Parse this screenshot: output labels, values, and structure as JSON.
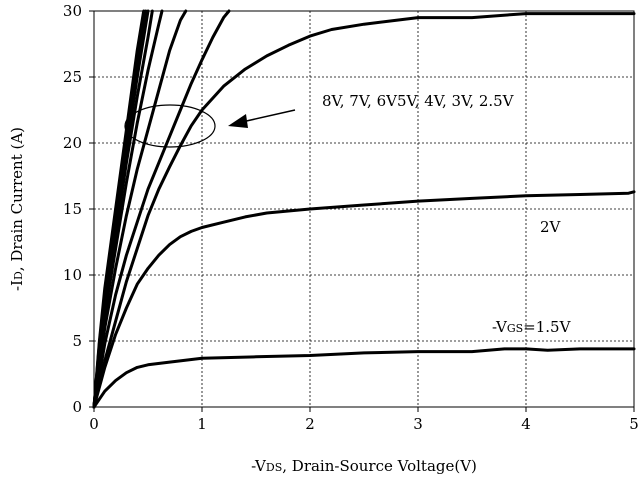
{
  "chart_data": {
    "type": "line",
    "xlabel_prefix": "-V",
    "xlabel_sub": "DS",
    "xlabel_suffix": ", Drain-Source Voltage(V)",
    "ylabel_prefix": "-I",
    "ylabel_sub": "D",
    "ylabel_suffix": ", Drain Current (A)",
    "xlim": [
      0,
      5
    ],
    "ylim": [
      0,
      30
    ],
    "x_ticks": [
      0,
      1,
      2,
      3,
      4,
      5
    ],
    "y_ticks": [
      0,
      5,
      10,
      15,
      20,
      25,
      30
    ],
    "grid": true,
    "series": [
      {
        "points": [
          [
            0,
            0
          ],
          [
            0.05,
            5
          ],
          [
            0.1,
            9
          ],
          [
            0.2,
            15
          ],
          [
            0.3,
            21
          ],
          [
            0.4,
            27
          ],
          [
            0.46,
            30
          ]
        ]
      },
      {
        "points": [
          [
            0,
            0
          ],
          [
            0.05,
            4.8
          ],
          [
            0.1,
            8.5
          ],
          [
            0.2,
            14.5
          ],
          [
            0.3,
            20.5
          ],
          [
            0.4,
            26
          ],
          [
            0.48,
            30
          ]
        ]
      },
      {
        "points": [
          [
            0,
            0
          ],
          [
            0.05,
            4.5
          ],
          [
            0.1,
            8
          ],
          [
            0.2,
            14
          ],
          [
            0.3,
            19.5
          ],
          [
            0.4,
            25
          ],
          [
            0.5,
            30
          ]
        ]
      },
      {
        "points": [
          [
            0,
            0
          ],
          [
            0.05,
            4.3
          ],
          [
            0.1,
            7.5
          ],
          [
            0.2,
            13
          ],
          [
            0.3,
            18.5
          ],
          [
            0.4,
            23.5
          ],
          [
            0.5,
            28
          ],
          [
            0.54,
            30
          ]
        ]
      },
      {
        "points": [
          [
            0,
            0
          ],
          [
            0.05,
            4
          ],
          [
            0.1,
            7
          ],
          [
            0.2,
            12
          ],
          [
            0.3,
            17
          ],
          [
            0.4,
            21.5
          ],
          [
            0.5,
            25.5
          ],
          [
            0.6,
            29
          ],
          [
            0.63,
            30
          ]
        ]
      },
      {
        "points": [
          [
            0,
            0
          ],
          [
            0.1,
            6
          ],
          [
            0.2,
            10.5
          ],
          [
            0.3,
            14.5
          ],
          [
            0.4,
            18
          ],
          [
            0.5,
            21
          ],
          [
            0.6,
            24
          ],
          [
            0.7,
            27
          ],
          [
            0.8,
            29.3
          ],
          [
            0.85,
            30
          ]
        ]
      },
      {
        "points": [
          [
            0,
            0
          ],
          [
            0.1,
            4.8
          ],
          [
            0.2,
            8.5
          ],
          [
            0.3,
            11.5
          ],
          [
            0.4,
            14
          ],
          [
            0.5,
            16.5
          ],
          [
            0.6,
            18.5
          ],
          [
            0.7,
            20.5
          ],
          [
            0.8,
            22.5
          ],
          [
            0.9,
            24.5
          ],
          [
            1.0,
            26.3
          ],
          [
            1.1,
            28
          ],
          [
            1.2,
            29.5
          ],
          [
            1.25,
            30
          ]
        ]
      },
      {
        "points": [
          [
            0,
            0
          ],
          [
            0.1,
            3.5
          ],
          [
            0.2,
            6.5
          ],
          [
            0.3,
            9.5
          ],
          [
            0.4,
            12
          ],
          [
            0.5,
            14.5
          ],
          [
            0.6,
            16.5
          ],
          [
            0.7,
            18.2
          ],
          [
            0.8,
            19.8
          ],
          [
            0.9,
            21.3
          ],
          [
            1.0,
            22.5
          ],
          [
            1.2,
            24.3
          ],
          [
            1.4,
            25.6
          ],
          [
            1.6,
            26.6
          ],
          [
            1.8,
            27.4
          ],
          [
            2.0,
            28.1
          ],
          [
            2.2,
            28.6
          ],
          [
            2.5,
            29.0
          ],
          [
            2.8,
            29.3
          ],
          [
            3.0,
            29.5
          ],
          [
            3.5,
            29.5
          ],
          [
            4.0,
            29.8
          ],
          [
            4.5,
            29.8
          ],
          [
            5.0,
            29.8
          ]
        ]
      },
      {
        "points": [
          [
            0,
            0
          ],
          [
            0.1,
            3
          ],
          [
            0.2,
            5.5
          ],
          [
            0.3,
            7.5
          ],
          [
            0.4,
            9.3
          ],
          [
            0.5,
            10.5
          ],
          [
            0.6,
            11.5
          ],
          [
            0.7,
            12.3
          ],
          [
            0.8,
            12.9
          ],
          [
            0.9,
            13.3
          ],
          [
            1.0,
            13.6
          ],
          [
            1.2,
            14.0
          ],
          [
            1.4,
            14.4
          ],
          [
            1.6,
            14.7
          ],
          [
            2.0,
            15.0
          ],
          [
            2.5,
            15.3
          ],
          [
            3.0,
            15.6
          ],
          [
            3.5,
            15.8
          ],
          [
            4.0,
            16.0
          ],
          [
            4.5,
            16.1
          ],
          [
            4.95,
            16.2
          ],
          [
            5.0,
            16.3
          ]
        ]
      },
      {
        "points": [
          [
            0,
            0
          ],
          [
            0.1,
            1.2
          ],
          [
            0.2,
            2.0
          ],
          [
            0.3,
            2.6
          ],
          [
            0.4,
            3.0
          ],
          [
            0.5,
            3.2
          ],
          [
            0.7,
            3.4
          ],
          [
            1.0,
            3.7
          ],
          [
            1.5,
            3.8
          ],
          [
            2.0,
            3.9
          ],
          [
            2.5,
            4.1
          ],
          [
            3.0,
            4.2
          ],
          [
            3.5,
            4.2
          ],
          [
            3.8,
            4.4
          ],
          [
            4.0,
            4.4
          ],
          [
            4.2,
            4.3
          ],
          [
            4.5,
            4.4
          ],
          [
            5.0,
            4.4
          ]
        ]
      }
    ],
    "annotations": {
      "label_high": "8V, 7V, 6V5V, 4V, 3V, 2.5V",
      "label_2v": "2V",
      "label_vgs_prefix": "-V",
      "label_vgs_sub": "GS",
      "label_vgs_suffix": "=1.5V"
    }
  }
}
